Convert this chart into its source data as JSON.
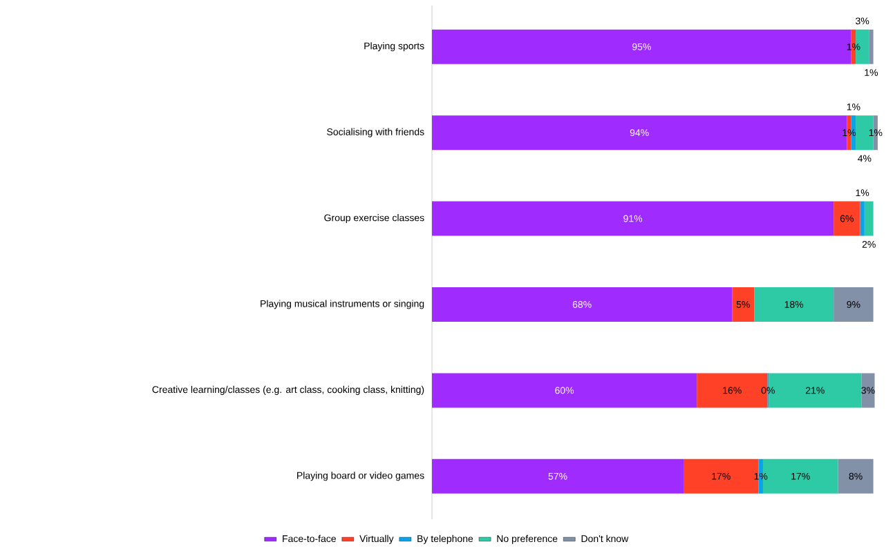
{
  "chart_data": {
    "type": "bar",
    "orientation": "horizontal",
    "stacked": true,
    "xlim": [
      0,
      101
    ],
    "tick_labels": "y",
    "legend": "bottom",
    "categories": [
      "Playing sports",
      "Socialising with friends",
      "Group exercise classes",
      "Playing musical instruments or singing",
      "Creative learning/classes (e.g. art class, cooking class, knitting)",
      "Playing board or video games"
    ],
    "series": [
      {
        "name": "Face-to-face",
        "color": "#a02bfe",
        "values": [
          95,
          94,
          91,
          68,
          60,
          57
        ],
        "value_labels": [
          "95%",
          "94%",
          "91%",
          "68%",
          "60%",
          "57%"
        ]
      },
      {
        "name": "Virtually",
        "color": "#ff4127",
        "values": [
          1,
          1,
          6,
          5,
          16,
          17
        ],
        "value_labels": [
          "1%",
          "1%",
          "6%",
          "5%",
          "16%",
          "17%"
        ]
      },
      {
        "name": "By telephone",
        "color": "#0aa2e8",
        "values": [
          0,
          1,
          1,
          0,
          0.3,
          1
        ],
        "value_labels": [
          null,
          "1%",
          "1%",
          null,
          "0%",
          "1%"
        ]
      },
      {
        "name": "No preference",
        "color": "#2ecaa6",
        "values": [
          3,
          4,
          2,
          18,
          21,
          17
        ],
        "value_labels": [
          "3%",
          "4%",
          "2%",
          "18%",
          "21%",
          "17%"
        ]
      },
      {
        "name": "Don't know",
        "color": "#8290a8",
        "values": [
          1,
          1,
          0,
          9,
          3,
          8
        ],
        "value_labels": [
          "1%",
          "1%",
          null,
          "9%",
          "3%",
          "8%"
        ]
      }
    ]
  }
}
